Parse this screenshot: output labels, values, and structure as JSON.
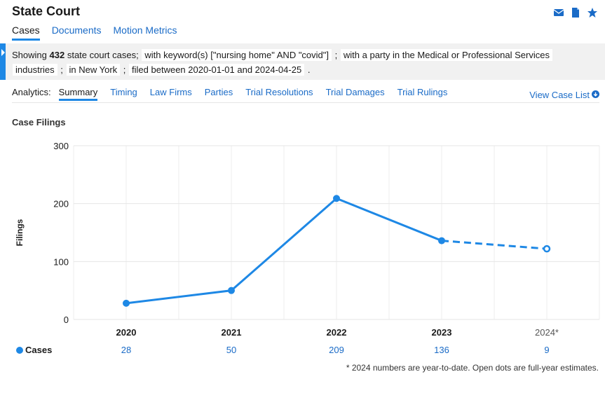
{
  "header": {
    "title": "State Court"
  },
  "icons": [
    "envelope-icon",
    "document-icon",
    "star-icon"
  ],
  "top_tabs": [
    {
      "label": "Cases",
      "active": true
    },
    {
      "label": "Documents",
      "active": false
    },
    {
      "label": "Motion Metrics",
      "active": false
    }
  ],
  "filter": {
    "prefix": "Showing",
    "count": "432",
    "suffix": "state court cases;",
    "keyword": "with keyword(s) [\"nursing home\" AND \"covid\"]",
    "sep1": ";",
    "party_line1": "with a party in the Medical or Professional Services",
    "party_line2": "industries",
    "sep2": ";",
    "location": "in New York",
    "sep3": ";",
    "dates": "filed between 2020-01-01 and 2024-04-25",
    "end": "."
  },
  "analytics": {
    "label": "Analytics:",
    "tabs": [
      {
        "label": "Summary",
        "active": true
      },
      {
        "label": "Timing",
        "active": false
      },
      {
        "label": "Law Firms",
        "active": false
      },
      {
        "label": "Parties",
        "active": false
      },
      {
        "label": "Trial Resolutions",
        "active": false
      },
      {
        "label": "Trial Damages",
        "active": false
      },
      {
        "label": "Trial Rulings",
        "active": false
      }
    ],
    "view_case_list": "View Case List"
  },
  "section_title": "Case Filings",
  "chart_data": {
    "type": "line",
    "ylabel": "Filings",
    "xlabel": "",
    "ylim": [
      0,
      300
    ],
    "yticks": [
      0,
      100,
      200,
      300
    ],
    "categories": [
      "2020",
      "2021",
      "2022",
      "2023",
      "2024*"
    ],
    "series": [
      {
        "name": "Cases",
        "values": [
          28,
          50,
          209,
          136,
          122
        ],
        "projected_last": true
      }
    ],
    "table_label": "Cases",
    "table_values": [
      "28",
      "50",
      "209",
      "136",
      "9"
    ],
    "line_color": "#1e88e5",
    "grid": true
  },
  "footnote": "* 2024 numbers are year-to-date. Open dots are full-year estimates."
}
